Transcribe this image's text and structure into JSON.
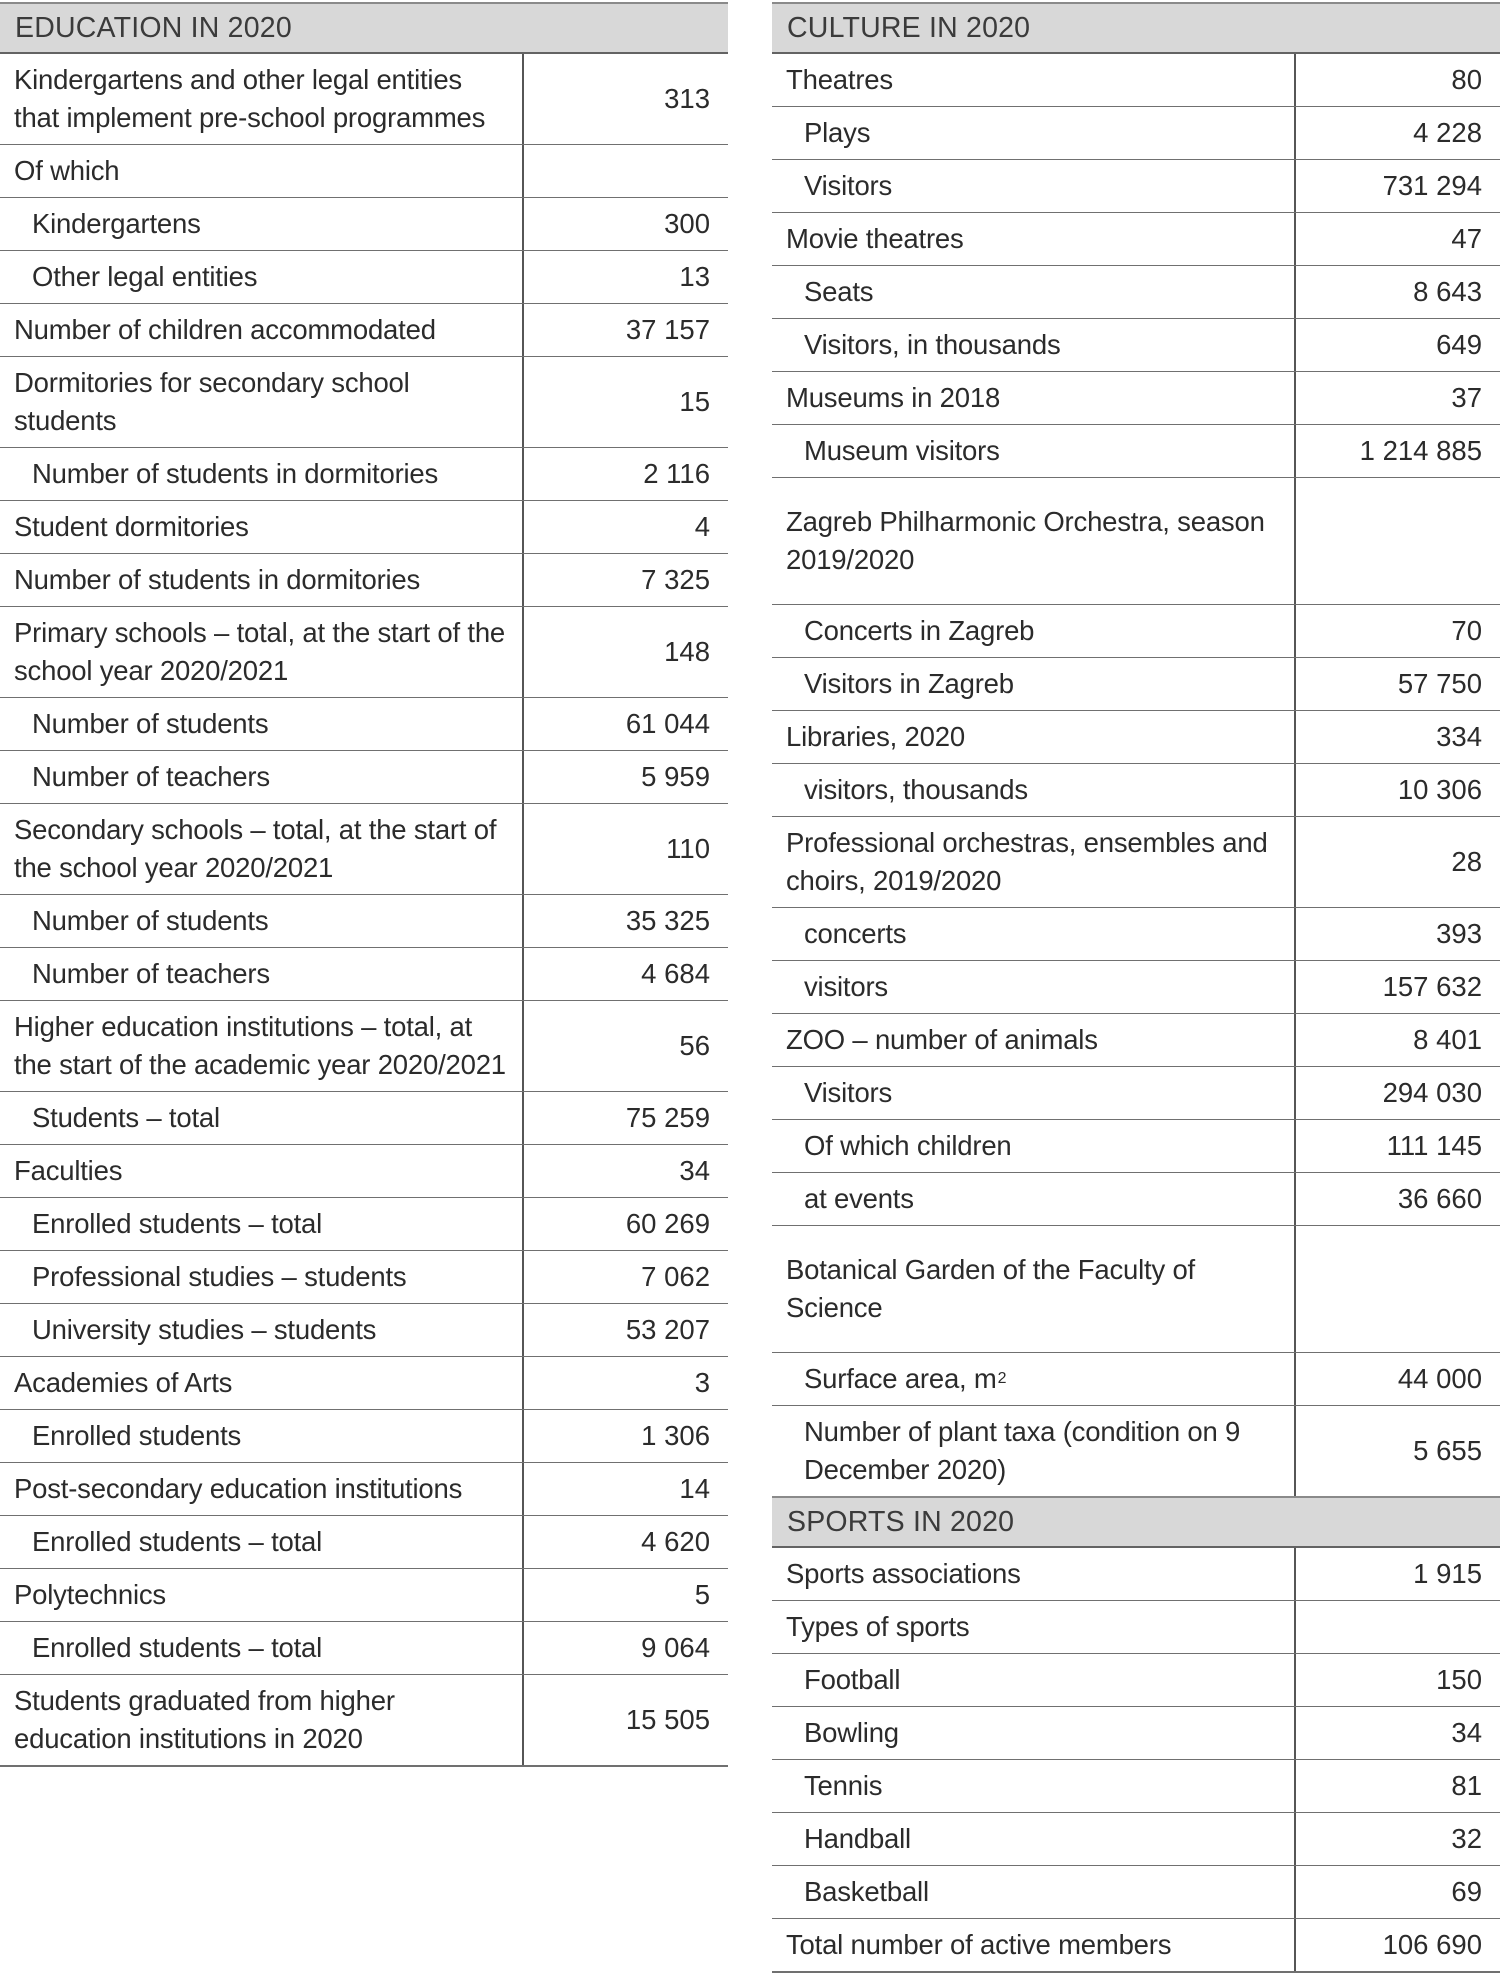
{
  "theme": {
    "band_bg": "#d8d8d8",
    "band_top_border": "#8a8a8a",
    "band_bottom_border": "#636363",
    "row_line": "#707070",
    "divider": "#565656",
    "header_text": "#3b3b3b",
    "body_text": "#2b2b2b",
    "page_bg": "#ffffff"
  },
  "columns": [
    {
      "tables": [
        {
          "header": "EDUCATION IN 2020",
          "rows": [
            {
              "label": "Kindergartens and other legal entities that implement pre-school programmes",
              "value": "313",
              "indent": false
            },
            {
              "label": "Of which",
              "value": "",
              "indent": false
            },
            {
              "label": "Kindergartens",
              "value": "300",
              "indent": true
            },
            {
              "label": "Other legal entities",
              "value": "13",
              "indent": true
            },
            {
              "label": "Number of children accommodated",
              "value": "37 157",
              "indent": false
            },
            {
              "label": "Dormitories for secondary school students",
              "value": "15",
              "indent": false
            },
            {
              "label": "Number of students in dormitories",
              "value": "2 116",
              "indent": true
            },
            {
              "label": "Student dormitories",
              "value": "4",
              "indent": false
            },
            {
              "label": "Number of students in dormitories",
              "value": "7 325",
              "indent": false
            },
            {
              "label": "Primary schools – total, at the start of the school year 2020/2021",
              "value": "148",
              "indent": false
            },
            {
              "label": "Number of students",
              "value": "61 044",
              "indent": true
            },
            {
              "label": "Number of teachers",
              "value": "5 959",
              "indent": true
            },
            {
              "label": "Secondary schools – total, at the start of the school year 2020/2021",
              "value": "110",
              "indent": false
            },
            {
              "label": "Number of students",
              "value": "35 325",
              "indent": true
            },
            {
              "label": "Number of teachers",
              "value": "4 684",
              "indent": true
            },
            {
              "label": "Higher education institutions – total, at the start of the academic year 2020/2021",
              "value": "56",
              "indent": false
            },
            {
              "label": "Students – total",
              "value": "75 259",
              "indent": true
            },
            {
              "label": "Faculties",
              "value": "34",
              "indent": false
            },
            {
              "label": "Enrolled students – total",
              "value": "60 269",
              "indent": true
            },
            {
              "label": "Professional studies – students",
              "value": "7 062",
              "indent": true
            },
            {
              "label": "University studies – students",
              "value": "53 207",
              "indent": true
            },
            {
              "label": "Academies of Arts",
              "value": "3",
              "indent": false
            },
            {
              "label": "Enrolled students",
              "value": "1 306",
              "indent": true
            },
            {
              "label": "Post-secondary education institutions",
              "value": "14",
              "indent": false
            },
            {
              "label": "Enrolled students – total",
              "value": "4 620",
              "indent": true
            },
            {
              "label": "Polytechnics",
              "value": "5",
              "indent": false
            },
            {
              "label": "Enrolled students – total",
              "value": "9 064",
              "indent": true
            },
            {
              "label": "Students graduated from higher education institutions in 2020",
              "value": "15 505",
              "indent": false
            }
          ]
        }
      ]
    },
    {
      "tables": [
        {
          "header": "CULTURE IN 2020",
          "rows": [
            {
              "label": "Theatres",
              "value": "80",
              "indent": false
            },
            {
              "label": "Plays",
              "value": "4 228",
              "indent": true
            },
            {
              "label": "Visitors",
              "value": "731 294",
              "indent": true
            },
            {
              "label": "Movie theatres",
              "value": "47",
              "indent": false
            },
            {
              "label": "Seats",
              "value": "8 643",
              "indent": true
            },
            {
              "label": "Visitors, in thousands",
              "value": "649",
              "indent": true
            },
            {
              "label": "Museums in 2018",
              "value": "37",
              "indent": false
            },
            {
              "label": "Museum visitors",
              "value": "1 214 885",
              "indent": true
            },
            {
              "label": "Zagreb Philharmonic Orchestra, season 2019/2020",
              "value": "",
              "indent": false,
              "tall": true
            },
            {
              "label": "Concerts in Zagreb",
              "value": "70",
              "indent": true
            },
            {
              "label": "Visitors in Zagreb",
              "value": "57 750",
              "indent": true
            },
            {
              "label": "Libraries, 2020",
              "value": "334",
              "indent": false
            },
            {
              "label": "visitors, thousands",
              "value": "10 306",
              "indent": true
            },
            {
              "label": "Professional orchestras, ensembles and choirs, 2019/2020",
              "value": "28",
              "indent": false
            },
            {
              "label": "concerts",
              "value": "393",
              "indent": true
            },
            {
              "label": "visitors",
              "value": "157 632",
              "indent": true
            },
            {
              "label": "ZOO – number of animals",
              "value": "8 401",
              "indent": false
            },
            {
              "label": "Visitors",
              "value": "294 030",
              "indent": true
            },
            {
              "label": "Of which children",
              "value": "111 145",
              "indent": true
            },
            {
              "label": "at events",
              "value": "36 660",
              "indent": true
            },
            {
              "label": "Botanical Garden of the Faculty of Science",
              "value": "",
              "indent": false,
              "tall": true
            },
            {
              "label": "Surface area, m",
              "sup": "2",
              "value": "44 000",
              "indent": true
            },
            {
              "label": "Number of plant taxa (condition on 9 December 2020)",
              "value": "5 655",
              "indent": true
            }
          ]
        },
        {
          "header": "SPORTS IN 2020",
          "rows": [
            {
              "label": "Sports associations",
              "value": "1 915",
              "indent": false
            },
            {
              "label": "Types of sports",
              "value": "",
              "indent": false
            },
            {
              "label": "Football",
              "value": "150",
              "indent": true
            },
            {
              "label": "Bowling",
              "value": "34",
              "indent": true
            },
            {
              "label": "Tennis",
              "value": "81",
              "indent": true
            },
            {
              "label": "Handball",
              "value": "32",
              "indent": true
            },
            {
              "label": "Basketball",
              "value": "69",
              "indent": true
            },
            {
              "label": "Total number of active members",
              "value": "106 690",
              "indent": false
            }
          ]
        }
      ]
    }
  ]
}
